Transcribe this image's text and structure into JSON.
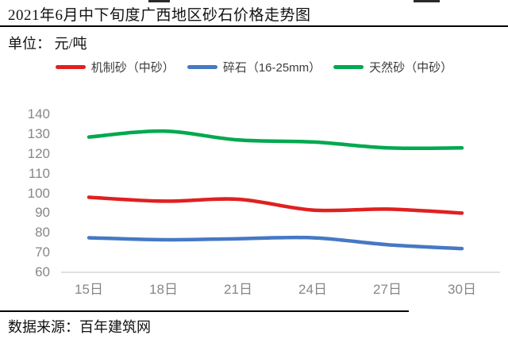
{
  "header": {
    "title": "2021年6月中下旬度广西地区砂石价格走势图",
    "unit_label": "单位： 元/吨"
  },
  "footer": {
    "source": "数据来源：百年建筑网"
  },
  "colors": {
    "machine_sand_red": "#e02020",
    "crushed_stone_blue": "#4678c4",
    "natural_sand_green": "#00a94f",
    "axis_text_gray": "#878787",
    "baseline_gray": "#d6d6d6",
    "text_black": "#111111"
  },
  "chart_data": {
    "type": "line",
    "title": "2021年6月中下旬度广西地区砂石价格走势图",
    "ylabel": "元/吨",
    "xlabel": "",
    "categories": [
      "15日",
      "18日",
      "21日",
      "24日",
      "27日",
      "30日"
    ],
    "series": [
      {
        "name": "机制砂（中砂）",
        "color": "#e02020",
        "values": [
          98,
          96,
          97,
          91.5,
          92,
          90
        ]
      },
      {
        "name": "碎石（16-25mm）",
        "color": "#4678c4",
        "values": [
          77.5,
          76.5,
          77,
          77.5,
          74,
          72
        ]
      },
      {
        "name": "天然砂（中砂）",
        "color": "#00a94f",
        "values": [
          128.5,
          131.5,
          127,
          126,
          123,
          123
        ]
      }
    ],
    "ylim": [
      60,
      140
    ],
    "yticks": [
      140,
      130,
      120,
      110,
      100,
      90,
      80,
      70,
      60
    ],
    "grid": "baseline-only",
    "legend_position": "top",
    "smooth": true
  }
}
